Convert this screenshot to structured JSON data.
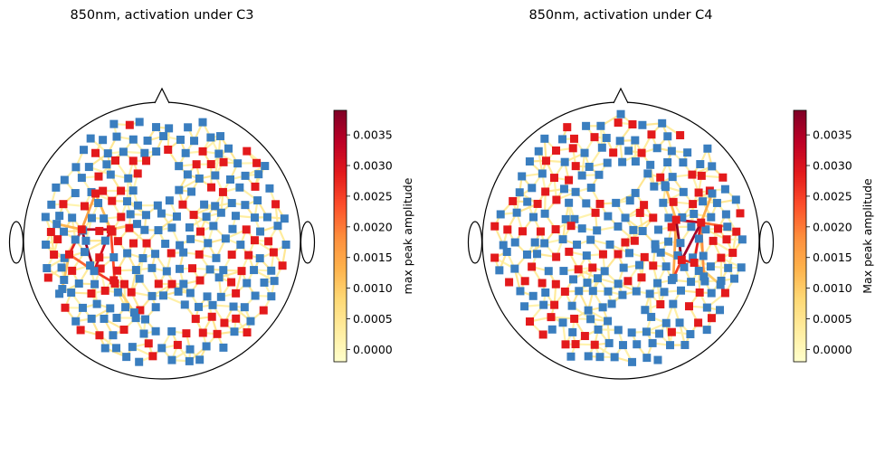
{
  "chart_data": [
    {
      "type": "scatter",
      "title": "850nm, activation under C3",
      "colorbar_label": "max peak amplitude",
      "colorbar_range": [
        -0.0002,
        0.0039
      ],
      "colorbar_ticks": [
        "0.0000",
        "0.0005",
        "0.0010",
        "0.0015",
        "0.0020",
        "0.0025",
        "0.0030",
        "0.0035"
      ],
      "colormap": [
        "#ffffcc",
        "#ffeda0",
        "#fed976",
        "#feb24c",
        "#fd8d3c",
        "#fc4e2a",
        "#e31a1c",
        "#bd0026",
        "#800026"
      ],
      "source_color": "#e31a1c",
      "detector_color": "#3a7ebf",
      "active_region": [
        -0.56,
        -0.16
      ],
      "strong_channels": [
        {
          "x": -0.58,
          "y": 0.08,
          "x2": -0.49,
          "y2": -0.22,
          "value": 0.0037
        },
        {
          "x": -0.58,
          "y": 0.08,
          "x2": -0.37,
          "y2": 0.08,
          "value": 0.0034
        },
        {
          "x": -0.58,
          "y": 0.08,
          "x2": -0.67,
          "y2": -0.1,
          "value": 0.0028
        },
        {
          "x": -0.37,
          "y": 0.08,
          "x2": -0.49,
          "y2": -0.22,
          "value": 0.0031
        },
        {
          "x": -0.37,
          "y": 0.08,
          "x2": -0.34,
          "y2": -0.31,
          "value": 0.0024
        },
        {
          "x": -0.49,
          "y": -0.22,
          "x2": -0.34,
          "y2": -0.31,
          "value": 0.0026
        },
        {
          "x": -0.67,
          "y": -0.1,
          "x2": -0.49,
          "y2": -0.22,
          "value": 0.0022
        },
        {
          "x": -0.48,
          "y": 0.34,
          "x2": -0.58,
          "y2": 0.08,
          "value": 0.0016
        },
        {
          "x": -0.48,
          "y": 0.34,
          "x2": -0.37,
          "y2": 0.08,
          "value": 0.0012
        },
        {
          "x": -0.67,
          "y": -0.1,
          "x2": -0.72,
          "y2": -0.35,
          "value": 0.0011
        },
        {
          "x": -0.34,
          "y": -0.31,
          "x2": -0.2,
          "y2": -0.52,
          "value": 0.0009
        },
        {
          "x": -0.37,
          "y": 0.08,
          "x2": -0.18,
          "y2": 0.12,
          "value": 0.0008
        },
        {
          "x": -0.58,
          "y": 0.08,
          "x2": -0.76,
          "y2": 0.12,
          "value": 0.0013
        }
      ],
      "seed": 7
    },
    {
      "type": "scatter",
      "title": "850nm, activation under C4",
      "colorbar_label": "Max peak amplitude",
      "colorbar_range": [
        -0.0002,
        0.0039
      ],
      "colorbar_ticks": [
        "0.0000",
        "0.0005",
        "0.0010",
        "0.0015",
        "0.0020",
        "0.0025",
        "0.0030",
        "0.0035"
      ],
      "colormap": [
        "#ffffcc",
        "#ffeda0",
        "#fed976",
        "#feb24c",
        "#fd8d3c",
        "#fc4e2a",
        "#e31a1c",
        "#bd0026",
        "#800026"
      ],
      "source_color": "#e31a1c",
      "detector_color": "#3a7ebf",
      "active_region": [
        0.5,
        0.0
      ],
      "strong_channels": [
        {
          "x": 0.58,
          "y": 0.13,
          "x2": 0.4,
          "y2": 0.15,
          "value": 0.0033
        },
        {
          "x": 0.4,
          "y": 0.15,
          "x2": 0.44,
          "y2": -0.14,
          "value": 0.0038
        },
        {
          "x": 0.58,
          "y": 0.13,
          "x2": 0.44,
          "y2": -0.14,
          "value": 0.0036
        },
        {
          "x": 0.58,
          "y": 0.13,
          "x2": 0.53,
          "y2": -0.16,
          "value": 0.0029
        },
        {
          "x": 0.44,
          "y": -0.14,
          "x2": 0.53,
          "y2": -0.16,
          "value": 0.0027
        },
        {
          "x": 0.44,
          "y": -0.14,
          "x2": 0.38,
          "y2": -0.27,
          "value": 0.0025
        },
        {
          "x": 0.58,
          "y": 0.13,
          "x2": 0.77,
          "y2": 0.1,
          "value": 0.0021
        },
        {
          "x": 0.58,
          "y": 0.13,
          "x2": 0.6,
          "y2": -0.26,
          "value": 0.0018
        },
        {
          "x": 0.4,
          "y": 0.15,
          "x2": 0.38,
          "y2": -0.27,
          "value": 0.0015
        },
        {
          "x": 0.58,
          "y": 0.13,
          "x2": 0.66,
          "y2": 0.34,
          "value": 0.0014
        },
        {
          "x": 0.4,
          "y": 0.15,
          "x2": 0.32,
          "y2": 0.4,
          "value": 0.0012
        },
        {
          "x": 0.53,
          "y": -0.16,
          "x2": 0.72,
          "y2": -0.32,
          "value": 0.001
        },
        {
          "x": 0.44,
          "y": -0.14,
          "x2": 0.25,
          "y2": -0.06,
          "value": 0.0009
        }
      ],
      "seed": 13
    }
  ]
}
